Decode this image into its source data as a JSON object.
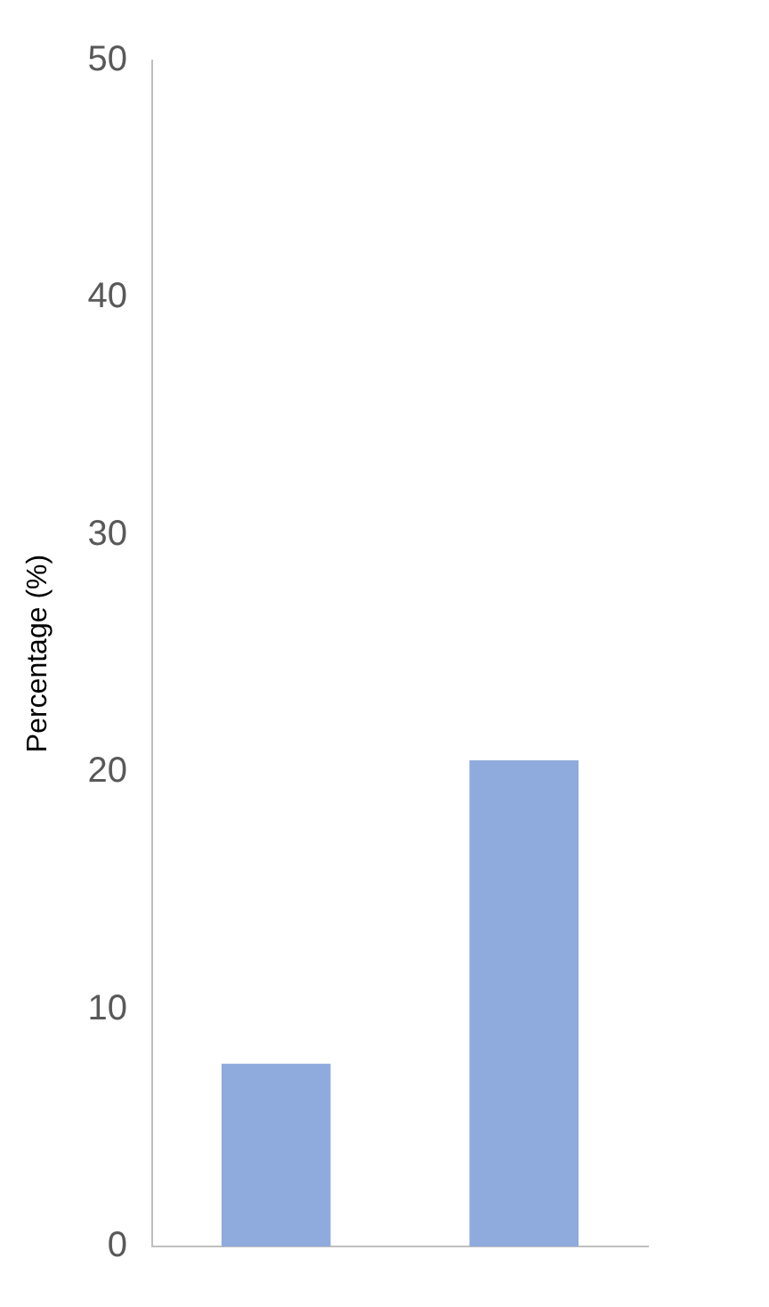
{
  "chart_data": {
    "type": "bar",
    "ylabel": "Percentage (%)",
    "categories": [
      null,
      null
    ],
    "values": [
      7.7,
      20.5
    ],
    "color": "#8faadc",
    "ylim": [
      0,
      50
    ],
    "yticks": [
      0,
      10,
      20,
      30,
      40,
      50
    ],
    "grid": false,
    "legend": false
  }
}
